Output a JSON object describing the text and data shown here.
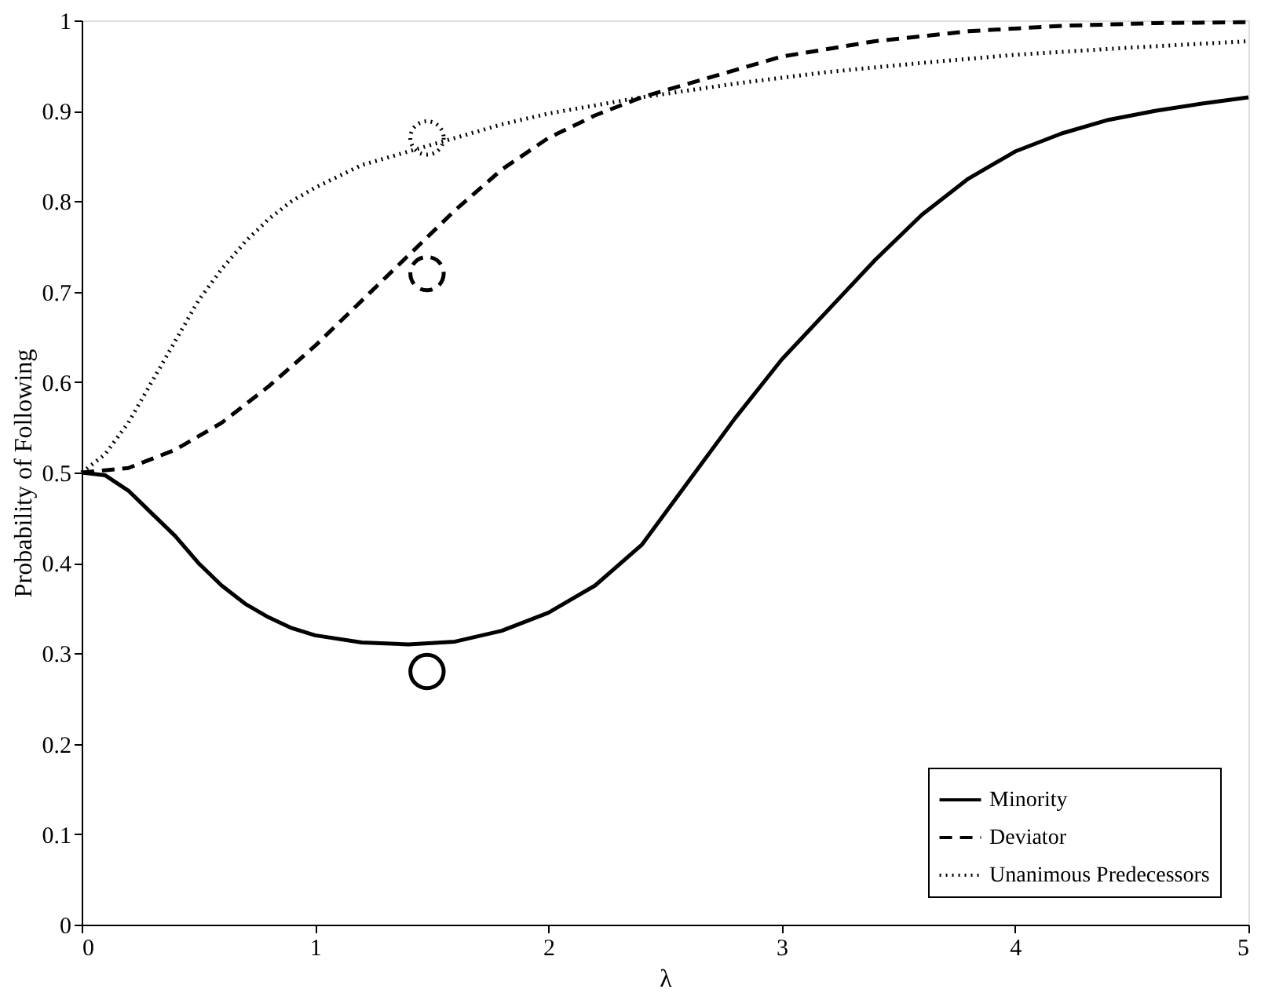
{
  "chart_data": {
    "type": "line",
    "xlabel": "λ",
    "ylabel": "Probability of Following",
    "xlim": [
      0,
      5
    ],
    "ylim": [
      0,
      1
    ],
    "xticks": [
      0,
      1,
      2,
      3,
      4,
      5
    ],
    "yticks": [
      0,
      0.1,
      0.2,
      0.3,
      0.4,
      0.5,
      0.6,
      0.7,
      0.8,
      0.9,
      1
    ],
    "grid": false,
    "legend": "bottom right",
    "marker": "none",
    "series": [
      {
        "name": "Minority",
        "color": "#000000",
        "line_style": "solid",
        "x": [
          0,
          0.1,
          0.2,
          0.3,
          0.4,
          0.5,
          0.6,
          0.7,
          0.8,
          0.9,
          1.0,
          1.2,
          1.4,
          1.6,
          1.8,
          2.0,
          2.2,
          2.4,
          2.6,
          2.8,
          3.0,
          3.2,
          3.4,
          3.6,
          3.8,
          4.0,
          4.2,
          4.4,
          4.6,
          4.8,
          5.0
        ],
        "values": [
          0.5,
          0.497,
          0.48,
          0.455,
          0.43,
          0.4,
          0.375,
          0.355,
          0.34,
          0.328,
          0.32,
          0.312,
          0.31,
          0.313,
          0.325,
          0.345,
          0.375,
          0.42,
          0.49,
          0.56,
          0.625,
          0.68,
          0.735,
          0.785,
          0.825,
          0.855,
          0.875,
          0.89,
          0.9,
          0.908,
          0.915
        ]
      },
      {
        "name": "Deviator",
        "color": "#000000",
        "line_style": "dashed",
        "x": [
          0,
          0.2,
          0.4,
          0.6,
          0.8,
          1.0,
          1.2,
          1.4,
          1.6,
          1.8,
          2.0,
          2.2,
          2.4,
          2.6,
          2.8,
          3.0,
          3.4,
          3.8,
          4.2,
          4.6,
          5.0
        ],
        "values": [
          0.5,
          0.505,
          0.525,
          0.555,
          0.595,
          0.64,
          0.69,
          0.74,
          0.79,
          0.835,
          0.87,
          0.895,
          0.915,
          0.93,
          0.945,
          0.96,
          0.977,
          0.988,
          0.994,
          0.997,
          0.998
        ]
      },
      {
        "name": "Unanimous Predecessors",
        "color": "#000000",
        "line_style": "dotted",
        "x": [
          0,
          0.1,
          0.2,
          0.3,
          0.4,
          0.5,
          0.6,
          0.7,
          0.8,
          0.9,
          1.0,
          1.2,
          1.4,
          1.6,
          1.8,
          2.0,
          2.4,
          2.8,
          3.2,
          3.6,
          4.0,
          4.5,
          5.0
        ],
        "values": [
          0.5,
          0.52,
          0.555,
          0.6,
          0.645,
          0.69,
          0.725,
          0.755,
          0.78,
          0.8,
          0.815,
          0.84,
          0.855,
          0.87,
          0.885,
          0.897,
          0.915,
          0.93,
          0.943,
          0.953,
          0.962,
          0.97,
          0.977
        ]
      },
      {
        "type": "scatter",
        "marker": "circle",
        "color": "#000000",
        "line_style": "solid",
        "x": [
          1.48
        ],
        "values": [
          0.28
        ]
      },
      {
        "type": "scatter",
        "marker": "circle",
        "color": "#000000",
        "line_style": "dashed",
        "x": [
          1.48
        ],
        "values": [
          0.72
        ]
      },
      {
        "type": "scatter",
        "marker": "circle",
        "color": "#000000",
        "line_style": "dotted",
        "x": [
          1.48
        ],
        "values": [
          0.87
        ]
      }
    ]
  }
}
